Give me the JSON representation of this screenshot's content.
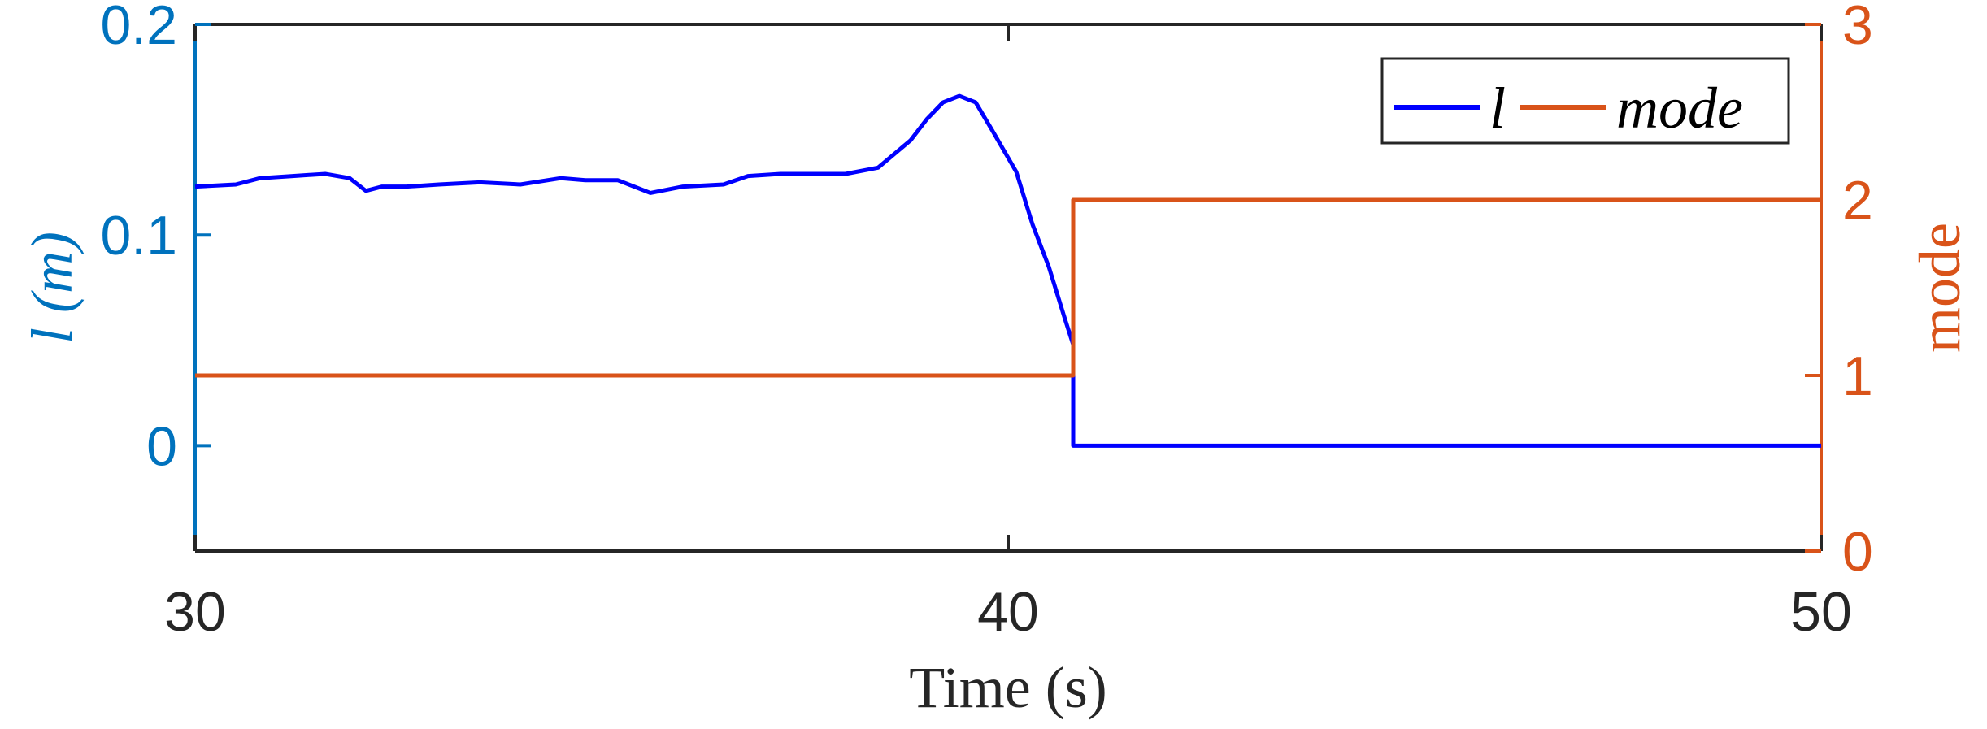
{
  "chart_data": {
    "type": "line",
    "xlabel": "Time (s)",
    "ylabel_left": "l (m)",
    "ylabel_right": "mode",
    "xlim": [
      30,
      50
    ],
    "ylim_left": [
      -0.05,
      0.2
    ],
    "ylim_right": [
      0,
      3
    ],
    "xticks": [
      "30",
      "40",
      "50"
    ],
    "yticks_left": [
      "0",
      "0.1",
      "0.2"
    ],
    "yticks_right": [
      "0",
      "1",
      "2",
      "3"
    ],
    "legend": [
      "l",
      "mode"
    ],
    "legend_position": "top-right",
    "grid": false,
    "series": [
      {
        "name": "l",
        "axis": "left",
        "color": "#0000FF",
        "x": [
          30.0,
          30.5,
          30.8,
          31.2,
          31.6,
          31.9,
          32.1,
          32.3,
          32.6,
          33.0,
          33.5,
          34.0,
          34.5,
          34.8,
          35.2,
          35.6,
          36.0,
          36.5,
          36.8,
          37.2,
          37.6,
          38.0,
          38.4,
          38.8,
          39.0,
          39.2,
          39.4,
          39.6,
          39.8,
          40.1,
          40.3,
          40.5,
          40.7,
          40.8,
          40.8,
          50.0
        ],
        "values": [
          0.123,
          0.124,
          0.127,
          0.128,
          0.129,
          0.127,
          0.121,
          0.123,
          0.123,
          0.124,
          0.125,
          0.124,
          0.127,
          0.126,
          0.126,
          0.12,
          0.123,
          0.124,
          0.128,
          0.129,
          0.129,
          0.129,
          0.132,
          0.145,
          0.155,
          0.163,
          0.166,
          0.163,
          0.15,
          0.13,
          0.105,
          0.085,
          0.06,
          0.048,
          0.0,
          0.0
        ]
      },
      {
        "name": "mode",
        "axis": "right",
        "color": "#D95319",
        "x": [
          30.0,
          40.8,
          40.8,
          50.0
        ],
        "values": [
          1,
          1,
          2,
          2
        ]
      }
    ]
  }
}
